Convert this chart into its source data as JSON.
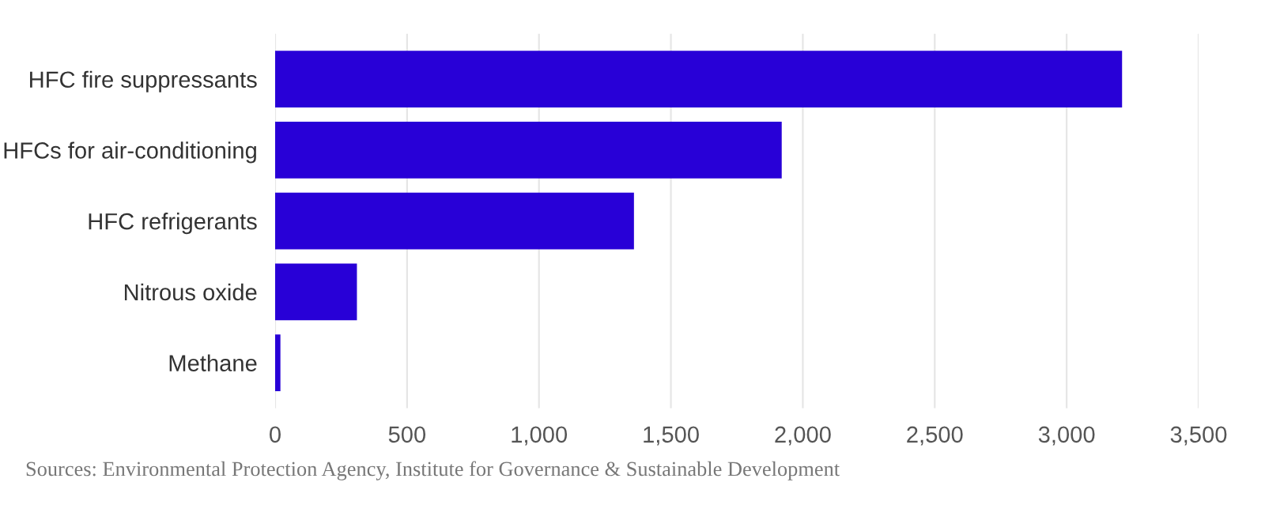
{
  "chart_data": {
    "type": "bar",
    "orientation": "horizontal",
    "categories": [
      "HFC fire suppressants",
      "HFCs for air-conditioning",
      "HFC refrigerants",
      "Nitrous oxide",
      "Methane"
    ],
    "values": [
      3210,
      1920,
      1360,
      310,
      20
    ],
    "color": "#2800d7",
    "xlim": [
      0,
      3500
    ],
    "xticks": [
      0,
      {
        "value": 500,
        "label": "500"
      },
      {
        "value": 1000,
        "label": "1,000"
      },
      {
        "value": 1500,
        "label": "1,500"
      },
      {
        "value": 2000,
        "label": "2,000"
      },
      {
        "value": 2500,
        "label": "2,500"
      },
      {
        "value": 3000,
        "label": "3,000"
      },
      {
        "value": 3500,
        "label": "3,500"
      }
    ],
    "grid": "x",
    "annotations": [
      "Sources: Environmental Protection Agency, Institute for Governance & Sustainable Development"
    ]
  }
}
